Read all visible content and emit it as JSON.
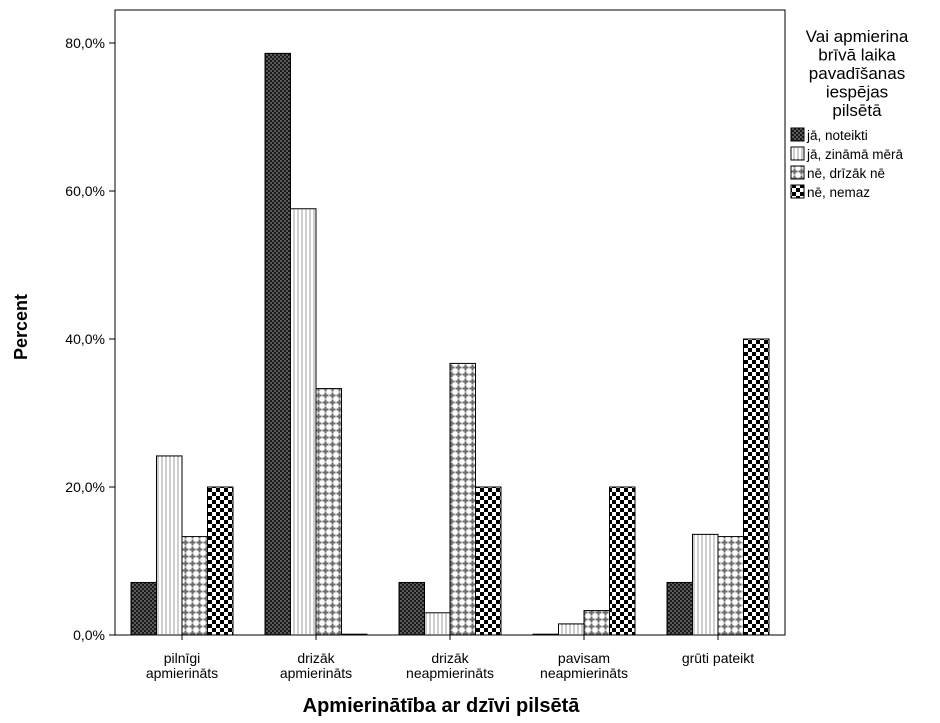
{
  "chart_data": {
    "type": "bar",
    "title": "",
    "xlabel": "Apmierinātība ar dzīvi pilsētā",
    "ylabel": "Percent",
    "ylim": [
      0,
      80
    ],
    "yticks": [
      "0,0%",
      "20,0%",
      "40,0%",
      "60,0%",
      "80,0%"
    ],
    "ytick_values": [
      0,
      20,
      40,
      60,
      80
    ],
    "categories": [
      [
        "pilnīgi",
        "apmierināts"
      ],
      [
        "drizāk",
        "apmierināts"
      ],
      [
        "drizāk",
        "neapmierināts"
      ],
      [
        "pavisam",
        "neapmierināts"
      ],
      [
        "grūti pateikt"
      ]
    ],
    "legend": {
      "title_lines": [
        "Vai apmierina",
        "brīvā laika",
        "pavadīšanas",
        "iespējas",
        "pilsētā"
      ],
      "placement": "right"
    },
    "series": [
      {
        "name": "jā, noteikti",
        "pattern": "dark-dots",
        "values": [
          7.1,
          78.6,
          7.1,
          0,
          7.1
        ]
      },
      {
        "name": "jā, zināmā mērā",
        "pattern": "light-dots",
        "values": [
          24.2,
          57.6,
          3.0,
          1.5,
          13.6
        ]
      },
      {
        "name": "nē, drīzāk nē",
        "pattern": "plus",
        "values": [
          13.3,
          33.3,
          36.7,
          3.3,
          13.3
        ]
      },
      {
        "name": "nē, nemaz",
        "pattern": "checker",
        "values": [
          20.0,
          0,
          20.0,
          20.0,
          40.0
        ]
      }
    ],
    "grid": false
  }
}
